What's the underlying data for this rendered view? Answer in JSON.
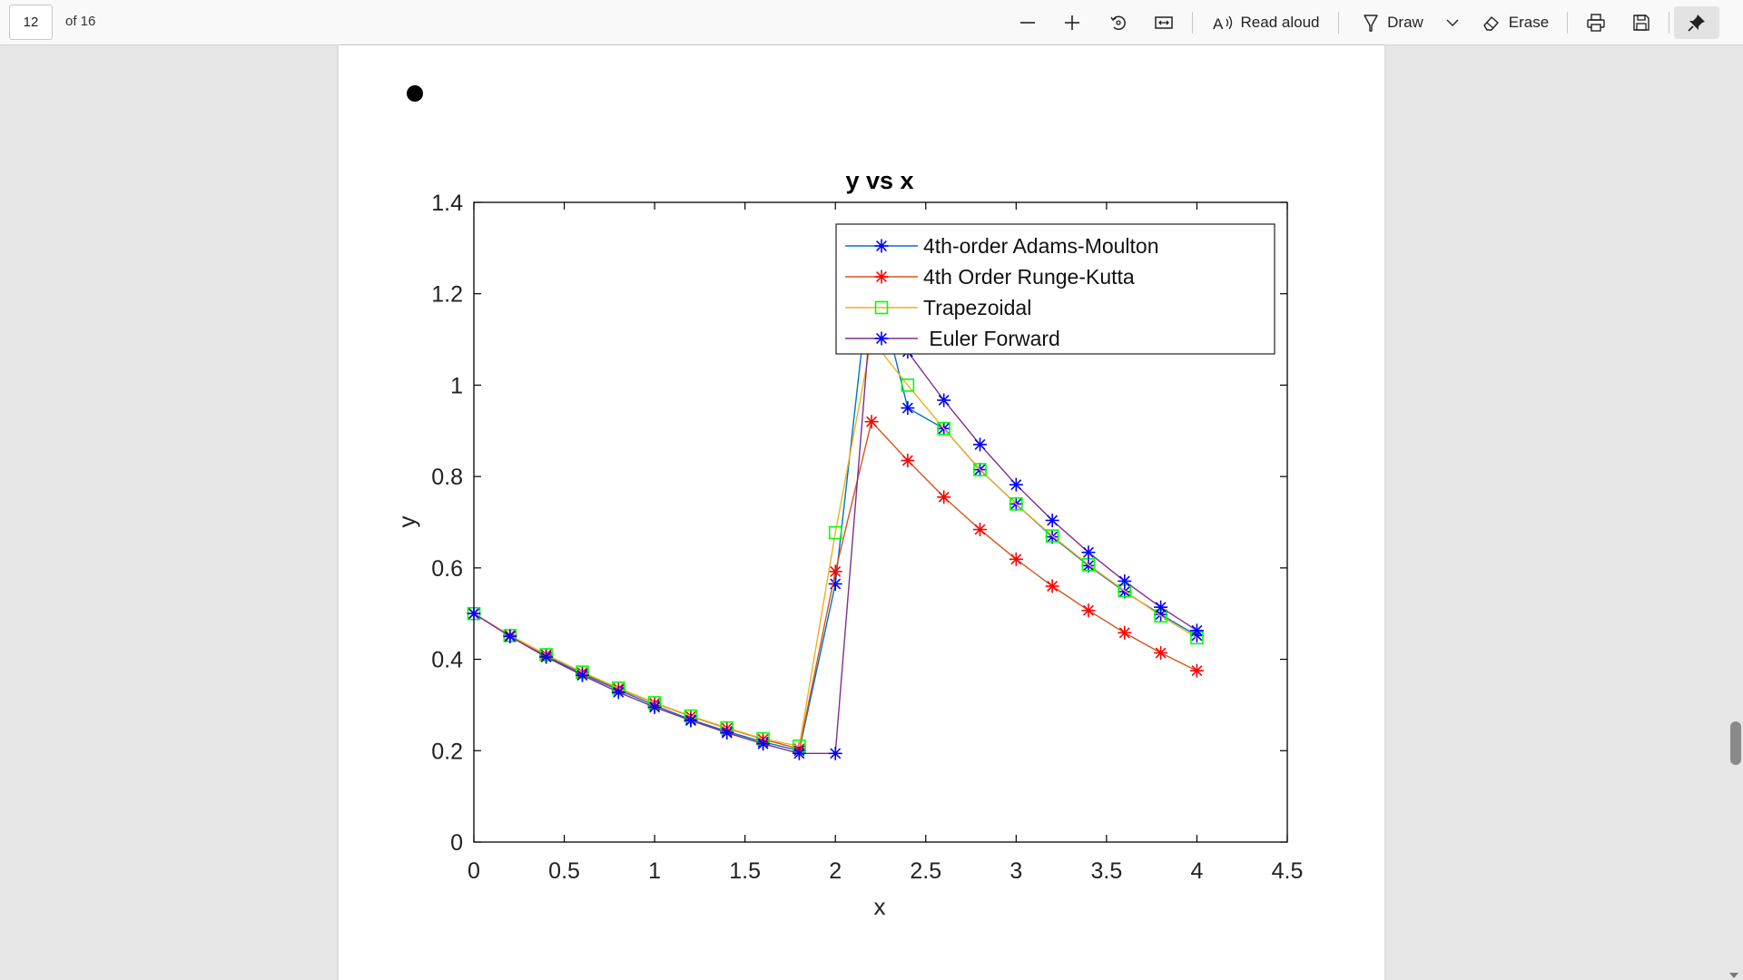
{
  "toolbar": {
    "page_number": "12",
    "page_total": "of 16",
    "read_aloud_label": "Read aloud",
    "draw_label": "Draw",
    "erase_label": "Erase",
    "icons": [
      "zoom-out-icon",
      "zoom-in-icon",
      "rotate-icon",
      "fit-page-icon",
      "read-aloud-icon",
      "draw-icon",
      "chevron-down-icon",
      "erase-icon",
      "print-icon",
      "save-icon",
      "pin-icon"
    ]
  },
  "chart_data": {
    "type": "line",
    "title": "y vs x",
    "xlabel": "x",
    "ylabel": "y",
    "xlim": [
      0,
      4.5
    ],
    "ylim": [
      0,
      1.4
    ],
    "xticks": [
      "0",
      "0.5",
      "1",
      "1.5",
      "2",
      "2.5",
      "3",
      "3.5",
      "4",
      "4.5"
    ],
    "yticks": [
      "0",
      "0.2",
      "0.4",
      "0.6",
      "0.8",
      "1",
      "1.2",
      "1.4"
    ],
    "grid": false,
    "legend_position": "top-right",
    "x": [
      0,
      0.2,
      0.4,
      0.6,
      0.8,
      1.0,
      1.2,
      1.4,
      1.6,
      1.8,
      2.0,
      2.2,
      2.4,
      2.6,
      2.8,
      3.0,
      3.2,
      3.4,
      3.6,
      3.8,
      4.0
    ],
    "series": [
      {
        "name": "4th-order Adams-Moulton",
        "line_color": "#0072bd",
        "marker": "asterisk",
        "marker_color": "#0000ff",
        "values": [
          0.5,
          0.452,
          0.407,
          0.368,
          0.333,
          0.299,
          0.268,
          0.242,
          0.219,
          0.2,
          0.565,
          1.27,
          0.95,
          0.905,
          0.815,
          0.74,
          0.668,
          0.605,
          0.548,
          0.498,
          0.452
        ]
      },
      {
        "name": "4th Order Runge-Kutta",
        "line_color": "#d95319",
        "marker": "asterisk",
        "marker_color": "#ff0000",
        "values": [
          0.5,
          0.452,
          0.41,
          0.371,
          0.336,
          0.304,
          0.275,
          0.249,
          0.225,
          0.204,
          0.592,
          0.92,
          0.835,
          0.755,
          0.684,
          0.619,
          0.56,
          0.507,
          0.458,
          0.414,
          0.375
        ]
      },
      {
        "name": "Trapezoidal",
        "line_color": "#edb120",
        "marker": "square",
        "marker_color": "#00ff00",
        "values": [
          0.5,
          0.452,
          0.41,
          0.372,
          0.337,
          0.305,
          0.276,
          0.25,
          0.226,
          0.21,
          0.677,
          1.1,
          1.0,
          0.905,
          0.815,
          0.74,
          0.67,
          0.607,
          0.55,
          0.495,
          0.447
        ]
      },
      {
        "name": " Euler Forward",
        "line_color": "#7e2f8e",
        "marker": "asterisk",
        "marker_color": "#0000ff",
        "values": [
          0.5,
          0.45,
          0.405,
          0.365,
          0.328,
          0.295,
          0.266,
          0.239,
          0.215,
          0.194,
          0.194,
          1.175,
          1.073,
          0.967,
          0.87,
          0.782,
          0.704,
          0.634,
          0.571,
          0.514,
          0.463
        ]
      }
    ]
  }
}
